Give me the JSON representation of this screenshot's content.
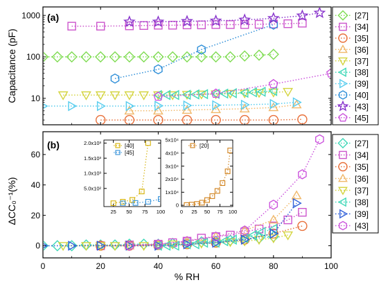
{
  "figure": {
    "xlabel": "% RH",
    "x_ticks": [
      "0",
      "20",
      "40",
      "60",
      "80",
      "100"
    ]
  },
  "chart_data": [
    {
      "panel": "(a)",
      "type": "scatter",
      "ylabel": "Capacitance (pF)",
      "y_scale": "log",
      "xlim": [
        0,
        100
      ],
      "ylim": [
        2.3,
        1600
      ],
      "y_ticks": [
        "10",
        "100",
        "1000"
      ],
      "series": [
        {
          "name": "[27]",
          "marker": "diamond",
          "color": "#7fdc52",
          "x": [
            0,
            5,
            10,
            15,
            20,
            25,
            30,
            35,
            40,
            45,
            50,
            55,
            60,
            65,
            70,
            75,
            80
          ],
          "y": [
            100,
            100,
            100,
            100,
            100,
            100,
            100,
            100,
            100,
            100,
            100,
            100,
            100,
            100,
            105,
            110,
            115
          ]
        },
        {
          "name": "[34]",
          "marker": "square",
          "color": "#cc55cc",
          "x": [
            10,
            20,
            30,
            35,
            40,
            45,
            50,
            55,
            60,
            65,
            70,
            75,
            80,
            85,
            90
          ],
          "y": [
            550,
            550,
            560,
            570,
            580,
            580,
            590,
            590,
            600,
            600,
            600,
            610,
            620,
            630,
            650
          ]
        },
        {
          "name": "[35]",
          "marker": "circle",
          "color": "#e8703a",
          "x": [
            20,
            30,
            40,
            50,
            60,
            70,
            80,
            90
          ],
          "y": [
            3,
            3,
            3,
            3,
            3,
            3,
            3,
            3.1
          ]
        },
        {
          "name": "[36]",
          "marker": "triangle-up",
          "color": "#f0b86a",
          "x": [
            30,
            40,
            50,
            60,
            70,
            80,
            88
          ],
          "y": [
            5,
            5,
            5.2,
            5.4,
            5.6,
            6,
            7
          ]
        },
        {
          "name": "[37]",
          "marker": "triangle-down",
          "color": "#d4d440",
          "x": [
            7,
            15,
            20,
            25,
            30,
            35,
            40,
            45,
            50,
            55,
            60,
            65,
            70,
            75,
            80,
            85
          ],
          "y": [
            12,
            12,
            12,
            12,
            12,
            12,
            12,
            12,
            12.3,
            12.5,
            12.7,
            13,
            13.3,
            13.6,
            14,
            14.5
          ]
        },
        {
          "name": "[38]",
          "marker": "triangle-left",
          "color": "#40d8b8",
          "x": [
            40,
            43,
            46,
            50,
            53,
            56,
            60,
            63,
            66,
            70,
            73,
            76,
            80
          ],
          "y": [
            12,
            12,
            12,
            12.2,
            12.4,
            12.6,
            12.8,
            13,
            13.3,
            13.6,
            14,
            14.4,
            15
          ]
        },
        {
          "name": "[39]",
          "marker": "triangle-right",
          "color": "#55ccee",
          "x": [
            0,
            10,
            20,
            30,
            40,
            50,
            60,
            70,
            80,
            88
          ],
          "y": [
            6.5,
            6.5,
            6.5,
            6.5,
            6.6,
            6.7,
            6.8,
            7,
            7.3,
            8
          ]
        },
        {
          "name": "[40]",
          "marker": "hexagon",
          "color": "#2f8fd8",
          "x": [
            25,
            40,
            55,
            80
          ],
          "y": [
            30,
            50,
            150,
            600
          ]
        },
        {
          "name": "[43]",
          "marker": "star",
          "color": "#8833cc",
          "x": [
            30,
            40,
            50,
            60,
            70,
            80,
            90,
            96
          ],
          "y": [
            700,
            700,
            720,
            740,
            780,
            850,
            980,
            1150
          ]
        },
        {
          "name": "[45]",
          "marker": "pentagon",
          "color": "#cc55dd",
          "x": [
            40,
            60,
            80,
            100
          ],
          "y": [
            11,
            13,
            22,
            40
          ]
        }
      ]
    },
    {
      "panel": "(b)",
      "type": "scatter",
      "ylabel": "ΔCC₀⁻¹(%)",
      "xlim": [
        0,
        100
      ],
      "ylim": [
        -8,
        75
      ],
      "y_ticks": [
        "0",
        "20",
        "40",
        "60"
      ],
      "series": [
        {
          "name": "[27]",
          "marker": "diamond",
          "color": "#40d8b8",
          "x": [
            0,
            5,
            10,
            15,
            20,
            25,
            30,
            35,
            40,
            45,
            50,
            55,
            60,
            65,
            70,
            75,
            80
          ],
          "y": [
            0,
            0,
            0,
            0.5,
            0.5,
            0.5,
            1,
            1,
            1,
            1.5,
            2,
            2.5,
            3,
            3.5,
            4,
            5,
            6
          ]
        },
        {
          "name": "[34]",
          "marker": "square",
          "color": "#cc55cc",
          "x": [
            20,
            30,
            40,
            45,
            50,
            55,
            60,
            65,
            70,
            75,
            80,
            85,
            90
          ],
          "y": [
            0,
            0.5,
            1,
            2,
            3,
            5,
            6,
            7,
            9,
            11,
            13,
            17,
            22
          ]
        },
        {
          "name": "[35]",
          "marker": "circle",
          "color": "#e8703a",
          "x": [
            20,
            30,
            40,
            50,
            60,
            70,
            80,
            90
          ],
          "y": [
            0,
            0,
            0.5,
            1,
            2,
            4,
            8,
            13
          ]
        },
        {
          "name": "[36]",
          "marker": "triangle-up",
          "color": "#f0b86a",
          "x": [
            30,
            40,
            50,
            60,
            70,
            80,
            88
          ],
          "y": [
            0,
            1,
            3,
            6,
            10,
            17,
            33
          ]
        },
        {
          "name": "[37]",
          "marker": "triangle-down",
          "color": "#d4d440",
          "x": [
            7,
            15,
            20,
            25,
            30,
            35,
            40,
            45,
            50,
            55,
            60,
            65,
            70,
            75,
            80,
            85
          ],
          "y": [
            0,
            0,
            0,
            0,
            0,
            0,
            0.5,
            1,
            1,
            1.5,
            2,
            2.5,
            3,
            4,
            5,
            7
          ]
        },
        {
          "name": "[38]",
          "marker": "triangle-left",
          "color": "#40d8b8",
          "x": [
            40,
            43,
            46,
            50,
            53,
            56,
            60,
            63,
            66,
            70,
            73,
            76,
            80
          ],
          "y": [
            0,
            0,
            0,
            1,
            1,
            2,
            2,
            3,
            4,
            5,
            7,
            9,
            11
          ]
        },
        {
          "name": "[39]",
          "marker": "triangle-right",
          "color": "#2f5fd8",
          "x": [
            0,
            10,
            20,
            30,
            40,
            50,
            60,
            70,
            80,
            88
          ],
          "y": [
            0,
            0,
            0,
            0,
            0,
            1,
            2,
            4,
            8,
            28
          ]
        },
        {
          "name": "[43]",
          "marker": "hexagon",
          "color": "#cc55dd",
          "x": [
            30,
            40,
            50,
            60,
            70,
            80,
            90,
            96
          ],
          "y": [
            0,
            1,
            3,
            6,
            10,
            27,
            47,
            70
          ]
        }
      ]
    },
    {
      "panel": "inset-1",
      "type": "scatter",
      "xlim": [
        10,
        100
      ],
      "ylim": [
        -100,
        2100
      ],
      "x_ticks": [
        "25",
        "50",
        "75",
        "100"
      ],
      "y_ticks": [
        "5.0x10²",
        "1.0x10³",
        "1.5x10³",
        "2.0x10³"
      ],
      "series": [
        {
          "name": "[40]",
          "marker": "square",
          "color": "#d4b000",
          "x": [
            25,
            40,
            55,
            70,
            80
          ],
          "y": [
            10,
            60,
            120,
            400,
            2000
          ]
        },
        {
          "name": "[45]",
          "marker": "square",
          "color": "#2f8fd8",
          "x": [
            40,
            60,
            80,
            100
          ],
          "y": [
            5,
            20,
            60,
            150
          ]
        }
      ]
    },
    {
      "panel": "inset-2",
      "type": "scatter",
      "xlim": [
        0,
        100
      ],
      "ylim": [
        -1000,
        50000
      ],
      "x_ticks": [
        "0",
        "25",
        "50",
        "75",
        "100"
      ],
      "y_ticks": [
        "0",
        "1x10⁴",
        "2x10⁴",
        "3x10⁴",
        "4x10⁴",
        "5x10⁴"
      ],
      "series": [
        {
          "name": "[20]",
          "marker": "square",
          "color": "#d0801a",
          "x": [
            10,
            20,
            30,
            40,
            50,
            60,
            70,
            80,
            90,
            95
          ],
          "y": [
            200,
            500,
            1000,
            2000,
            4000,
            7000,
            11000,
            17000,
            26000,
            42000
          ]
        }
      ]
    }
  ]
}
